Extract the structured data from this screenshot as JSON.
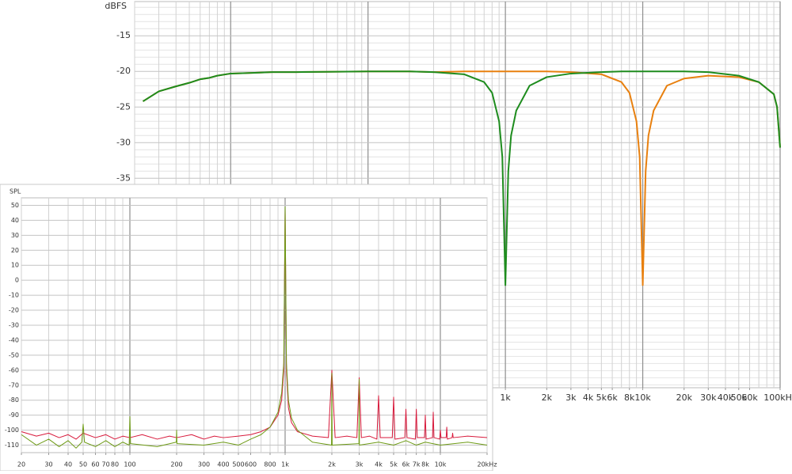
{
  "chart_data": [
    {
      "type": "line",
      "y_label": "dBFS",
      "xscale": "log",
      "grid": true,
      "xlim": [
        2,
        100000
      ],
      "ylim": [
        -64.4,
        -10.2
      ],
      "yticks": [
        -15,
        -20,
        -25,
        -30,
        -35
      ],
      "ygrid": [
        -11,
        -12,
        -13,
        -14,
        -16,
        -17,
        -18,
        -19,
        -21,
        -22,
        -23,
        -24,
        -26,
        -27,
        -28,
        -29,
        -31,
        -32,
        -33,
        -34,
        -36,
        -37,
        -38,
        -39,
        -40,
        -41,
        -42,
        -43,
        -44,
        -45,
        -46,
        -47,
        -48,
        -49,
        -50,
        -51,
        -52,
        -53,
        -54,
        -55,
        -56,
        -57,
        -58,
        -59,
        -60,
        -61,
        -62,
        -63,
        -64
      ],
      "xticks": [
        {
          "value": 1000,
          "label": "1k"
        },
        {
          "value": 2000,
          "label": "2k"
        },
        {
          "value": 3000,
          "label": "3k"
        },
        {
          "value": 4000,
          "label": "4k"
        },
        {
          "value": 5000,
          "label": "5k"
        },
        {
          "value": 6000,
          "label": "6k"
        },
        {
          "value": 8000,
          "label": "8k"
        },
        {
          "value": 10000,
          "label": "10k"
        },
        {
          "value": 20000,
          "label": "20k"
        },
        {
          "value": 30000,
          "label": "30k"
        },
        {
          "value": 40000,
          "label": "40k"
        },
        {
          "value": 50000,
          "label": "50k"
        },
        {
          "value": 60000,
          "label": "60k"
        },
        {
          "value": 100000,
          "label": "100kHz"
        }
      ],
      "xgrid": [
        2,
        3,
        4,
        5,
        6,
        7,
        8,
        9,
        10,
        20,
        30,
        40,
        50,
        60,
        70,
        80,
        90,
        100,
        200,
        300,
        400,
        500,
        600,
        700,
        800,
        900,
        1000,
        2000,
        3000,
        4000,
        5000,
        6000,
        7000,
        8000,
        9000,
        10000,
        20000,
        30000,
        40000,
        50000,
        60000,
        70000,
        80000,
        90000,
        100000
      ],
      "x": [
        2.3,
        3,
        4,
        5,
        6,
        7,
        8,
        10,
        15,
        20,
        30,
        50,
        100,
        200,
        300,
        500,
        700,
        800,
        900,
        950,
        1000,
        1050,
        1100,
        1200,
        1500,
        2000,
        3000,
        5000,
        7000,
        8000,
        9000,
        9500,
        10000,
        10500,
        11000,
        12000,
        15000,
        20000,
        30000,
        50000,
        70000,
        90000,
        95000,
        100000
      ],
      "series": [
        {
          "color": "#e8800f",
          "values": [
            -24.2,
            -22.8,
            -22.1,
            -21.6,
            -21.1,
            -20.9,
            -20.6,
            -20.3,
            -20.2,
            -20.1,
            -20.1,
            -20.05,
            -20,
            -20,
            -20.1,
            -20,
            -20,
            -20,
            -20,
            -20,
            -20,
            -20,
            -20,
            -20,
            -20,
            -20,
            -20.1,
            -20.4,
            -21.5,
            -23,
            -27,
            -32,
            -50,
            -34,
            -29,
            -25.5,
            -22,
            -21,
            -20.6,
            -20.8,
            -21.5,
            -23.2,
            -25,
            -30.7
          ]
        },
        {
          "color": "#1e8c1e",
          "values": [
            -24.2,
            -22.8,
            -22.1,
            -21.6,
            -21.1,
            -20.9,
            -20.6,
            -20.3,
            -20.2,
            -20.1,
            -20.1,
            -20.05,
            -20,
            -20,
            -20.1,
            -20.4,
            -21.5,
            -23,
            -27,
            -32,
            -50,
            -34,
            -29,
            -25.5,
            -22,
            -20.8,
            -20.3,
            -20.1,
            -20,
            -20,
            -20,
            -20,
            -20,
            -20,
            -20,
            -20,
            -20,
            -20,
            -20.1,
            -20.6,
            -21.5,
            -23.2,
            -25,
            -30.7
          ]
        }
      ]
    },
    {
      "type": "line",
      "y_label": "SPL",
      "xscale": "log",
      "grid": true,
      "xlim": [
        20,
        20000
      ],
      "ylim": [
        -115,
        55
      ],
      "yticks": [
        50,
        40,
        30,
        20,
        10,
        0,
        -10,
        -20,
        -30,
        -40,
        -50,
        -60,
        -70,
        -80,
        -90,
        -100,
        -110
      ],
      "ygrid": [],
      "xticks": [
        20,
        30,
        40,
        50,
        60,
        70,
        80,
        100,
        200,
        300,
        400,
        500,
        600,
        800,
        {
          "value": 1000,
          "label": "1k"
        },
        {
          "value": 2000,
          "label": "2k"
        },
        {
          "value": 3000,
          "label": "3k"
        },
        {
          "value": 4000,
          "label": "4k"
        },
        {
          "value": 5000,
          "label": "5k"
        },
        {
          "value": 6000,
          "label": "6k"
        },
        {
          "value": 7000,
          "label": "7k"
        },
        {
          "value": 8000,
          "label": "8k"
        },
        {
          "value": 10000,
          "label": "10k"
        },
        {
          "value": 20000,
          "label": "20kHz"
        }
      ],
      "xgrid": [
        20,
        30,
        40,
        50,
        60,
        70,
        80,
        90,
        100,
        200,
        300,
        400,
        500,
        600,
        700,
        800,
        900,
        1000,
        2000,
        3000,
        4000,
        5000,
        6000,
        7000,
        8000,
        9000,
        10000,
        20000
      ],
      "series": [
        {
          "color": "#d81a3c",
          "x": [
            20,
            25,
            30,
            35,
            40,
            45,
            50,
            60,
            70,
            80,
            90,
            100,
            120,
            150,
            180,
            200,
            250,
            300,
            350,
            400,
            500,
            600,
            700,
            800,
            900,
            950,
            980,
            1000,
            1020,
            1050,
            1100,
            1200,
            1500,
            1900,
            2000,
            2100,
            2500,
            2900,
            3000,
            3100,
            3500,
            3900,
            4000,
            4100,
            4900,
            5000,
            5100,
            5900,
            6000,
            6100,
            6900,
            7000,
            7100,
            7900,
            8000,
            8100,
            8900,
            9000,
            9100,
            9900,
            10000,
            10100,
            10900,
            11000,
            11100,
            11900,
            12000,
            12100,
            15000,
            20000
          ],
          "values": [
            -101,
            -104,
            -102,
            -105,
            -103,
            -106,
            -102,
            -105,
            -103,
            -106,
            -104,
            -105,
            -103,
            -106,
            -104,
            -105,
            -103,
            -106,
            -104,
            -105,
            -104,
            -103,
            -101,
            -98,
            -90,
            -80,
            -60,
            48,
            -60,
            -85,
            -95,
            -101,
            -104,
            -105,
            -60,
            -105,
            -104,
            -105,
            -65,
            -105,
            -104,
            -106,
            -77,
            -105,
            -105,
            -78,
            -106,
            -105,
            -86,
            -105,
            -106,
            -86,
            -105,
            -105,
            -90,
            -106,
            -105,
            -88,
            -105,
            -106,
            -100,
            -105,
            -105,
            -98,
            -106,
            -105,
            -102,
            -105,
            -104,
            -105
          ]
        },
        {
          "color": "#6e9b16",
          "x": [
            20,
            25,
            30,
            35,
            40,
            45,
            49,
            50,
            51,
            60,
            70,
            80,
            90,
            99,
            100,
            101,
            150,
            199,
            200,
            201,
            300,
            400,
            500,
            600,
            700,
            800,
            900,
            950,
            980,
            1000,
            1020,
            1050,
            1100,
            1200,
            1500,
            1990,
            2000,
            2010,
            2990,
            3000,
            3010,
            4000,
            5000,
            6000,
            7000,
            8000,
            10000,
            15000,
            20000
          ],
          "values": [
            -103,
            -110,
            -106,
            -111,
            -107,
            -112,
            -108,
            -96,
            -108,
            -111,
            -107,
            -111,
            -108,
            -110,
            -91,
            -109,
            -111,
            -108,
            -100,
            -109,
            -110,
            -108,
            -110,
            -106,
            -103,
            -98,
            -88,
            -75,
            -55,
            49,
            -55,
            -80,
            -92,
            -100,
            -108,
            -110,
            -62,
            -110,
            -109,
            -66,
            -110,
            -108,
            -110,
            -107,
            -110,
            -108,
            -110,
            -108,
            -110
          ]
        }
      ]
    }
  ]
}
